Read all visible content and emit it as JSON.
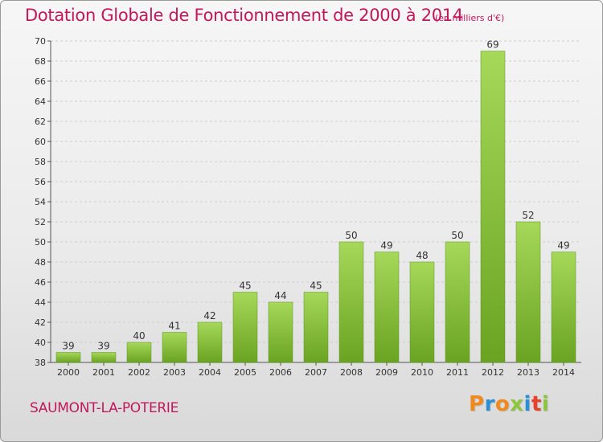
{
  "header": {
    "title": "Dotation Globale de Fonctionnement de 2000 à 2014",
    "unit": "(en milliers d'€)"
  },
  "footer": {
    "commune": "SAUMONT-LA-POTERIE",
    "logo_text": "Proxiti"
  },
  "colors": {
    "title": "#c2185b",
    "bar_light": "#a6d85a",
    "bar_dark": "#6aa322",
    "logo_letters": [
      "#f08a1c",
      "#2b8fd6",
      "#f08a1c",
      "#8cc63f",
      "#2b8fd6",
      "#e8432a",
      "#8cc63f"
    ]
  },
  "chart_data": {
    "type": "bar",
    "title": "Dotation Globale de Fonctionnement de 2000 à 2014",
    "subtitle": "(en milliers d'€)",
    "xlabel": "",
    "ylabel": "",
    "categories": [
      "2000",
      "2001",
      "2002",
      "2003",
      "2004",
      "2005",
      "2006",
      "2007",
      "2008",
      "2009",
      "2010",
      "2011",
      "2012",
      "2013",
      "2014"
    ],
    "values": [
      39,
      39,
      40,
      41,
      42,
      45,
      44,
      45,
      50,
      49,
      48,
      50,
      69,
      52,
      49
    ],
    "ylim": [
      38,
      70
    ],
    "yticks": [
      38,
      40,
      42,
      44,
      46,
      48,
      50,
      52,
      54,
      56,
      58,
      60,
      62,
      64,
      66,
      68,
      70
    ],
    "grid": true,
    "legend": "none"
  }
}
